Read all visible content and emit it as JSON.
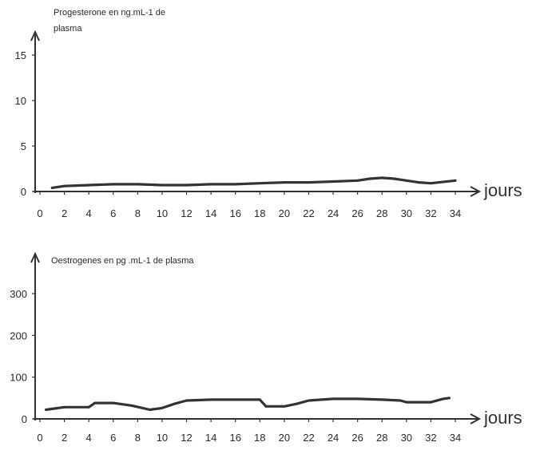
{
  "chart_data": [
    {
      "type": "line",
      "ylabel_lines": [
        "Progesterone en ng.mL-1 de",
        "plasma"
      ],
      "xlabel": "jours",
      "xlim": [
        0,
        34
      ],
      "ylim": [
        0,
        15
      ],
      "x_ticks": [
        "0",
        "2",
        "4",
        "6",
        "8",
        "10",
        "12",
        "14",
        "16",
        "18",
        "20",
        "22",
        "24",
        "26",
        "28",
        "30",
        "32",
        "34"
      ],
      "y_ticks": [
        "0",
        "5",
        "10",
        "15"
      ],
      "grid": false,
      "color": "#333333",
      "x": [
        1,
        2,
        4,
        6,
        8,
        10,
        12,
        14,
        16,
        18,
        20,
        22,
        24,
        26,
        27,
        28,
        29,
        30,
        31,
        32,
        34
      ],
      "y": [
        0.4,
        0.6,
        0.7,
        0.8,
        0.8,
        0.7,
        0.7,
        0.8,
        0.8,
        0.9,
        1.0,
        1.0,
        1.1,
        1.2,
        1.4,
        1.5,
        1.4,
        1.2,
        1.0,
        0.9,
        1.2
      ]
    },
    {
      "type": "line",
      "ylabel_lines": [
        "Oestrogenes en pg .mL-1 de plasma"
      ],
      "xlabel": "jours",
      "xlim": [
        0,
        34
      ],
      "ylim": [
        0,
        350
      ],
      "x_ticks": [
        "0",
        "2",
        "4",
        "6",
        "8",
        "10",
        "12",
        "14",
        "16",
        "18",
        "20",
        "22",
        "24",
        "26",
        "28",
        "30",
        "32",
        "34"
      ],
      "y_ticks": [
        "0",
        "100",
        "200",
        "300"
      ],
      "grid": false,
      "color": "#333333",
      "x": [
        0.5,
        2,
        4,
        4.5,
        6,
        7.5,
        9,
        10,
        11,
        12,
        14,
        16,
        18,
        18.5,
        20,
        21,
        22,
        24,
        26,
        28,
        29.5,
        30,
        32,
        33,
        33.5
      ],
      "y": [
        22,
        28,
        28,
        38,
        38,
        32,
        22,
        26,
        36,
        44,
        46,
        46,
        46,
        30,
        30,
        36,
        44,
        48,
        48,
        46,
        44,
        40,
        40,
        48,
        50
      ]
    }
  ]
}
